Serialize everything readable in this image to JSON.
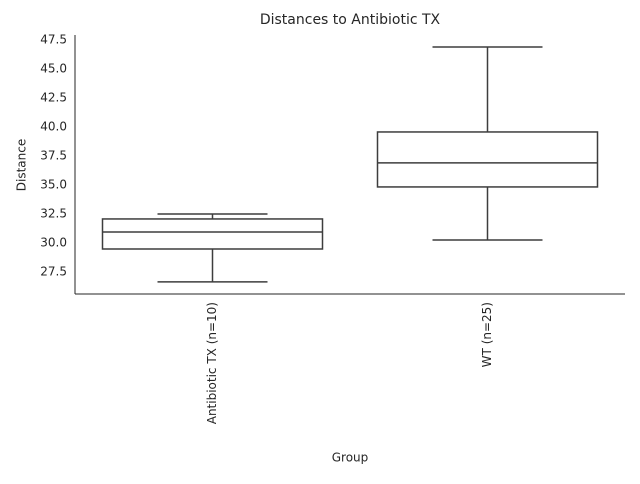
{
  "chart_data": {
    "type": "box",
    "title": "Distances to Antibiotic TX",
    "x_label": "Group",
    "y_label": "Distance",
    "categories": [
      "Antibiotic TX (n=10)",
      "WT (n=25)"
    ],
    "boxes": [
      {
        "min": 26.64,
        "q1": 29.48,
        "median": 30.95,
        "q3": 32.07,
        "max": 32.5
      },
      {
        "min": 30.26,
        "q1": 34.83,
        "median": 36.9,
        "q3": 39.57,
        "max": 46.9
      }
    ],
    "color": "#3d3d3d",
    "ylim": [
      25.6,
      47.93
    ],
    "yticks": [
      27.5,
      {
        "value": 30,
        "label": "30.0"
      },
      32.5,
      {
        "value": 35,
        "label": "35.0"
      },
      37.5,
      {
        "value": 40,
        "label": "40.0"
      },
      42.5,
      {
        "value": 45,
        "label": "45.0"
      },
      47.5
    ]
  }
}
